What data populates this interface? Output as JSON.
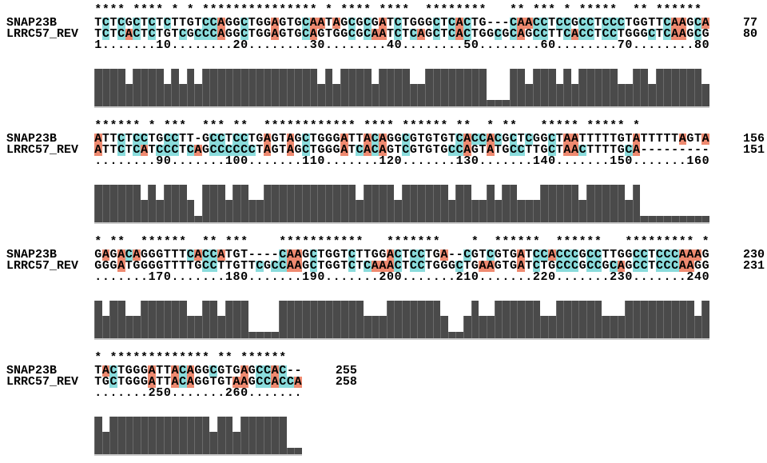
{
  "page": {
    "background": "#ffffff"
  },
  "alignment": {
    "labels": {
      "top": "SNAP23B",
      "bottom": "LRRC57_REV"
    },
    "colors": {
      "A": "#ef8a70",
      "C": "#8adcdc",
      "bar": "#4a4a4a",
      "baseline": "#c9c9c9",
      "text": "#000000"
    },
    "bar_levels": {
      "F": 1.0,
      "m": 0.6,
      "g": 0.17
    },
    "blocks": [
      {
        "stars": [
          "**** **** ",
          "* * ******",
          "********* ",
          "* **** ***",
          "*  *******",
          "*   ** ***",
          " * *****  ",
          "** ****** "
        ],
        "top_seq": [
          "TCTCGCTCTCTTGTCCAGGC",
          "TGGAGTGCAATAGCGCGATC",
          "TGGGCTCACTG---CAACCT",
          "CCGCCTCCCTGGTTCAAGCA"
        ],
        "bottom_seq": [
          "TCTCACTCTGTCGCCCAGGC",
          "TGGAGTGCAGTGGCGCAATC",
          "TCAGCTCACTGGCGCAGCCT",
          "TCACCTCCTGGGCTCAAGCG"
        ],
        "ruler": [
          "1.......10........20",
          "........30........40",
          "........50........60",
          "........70........80"
        ],
        "top_end": "77",
        "bottom_end": "80",
        "bars": [
          "FFFFmFFFFm",
          "FmFmFFFFFF",
          "FFFFFFFFFm",
          "FmFFFFmFFF",
          "FmmFFFFFFF",
          "FgggFFmFFF",
          "mFmFFFFFmm",
          "FFmFFFFFFm"
        ]
      },
      {
        "stars": [
          "****** * *",
          "**  *** **",
          "  ********",
          "**** **** ",
          "****** ** ",
          " * **   **",
          "*** ***** ",
          "*         "
        ],
        "top_seq": [
          "ATTCTCCTGCCTT-GCCTCC",
          "TGAGTAGCTGGGATTACAGG",
          "CGTGTGTCACCACGCTCGGC",
          "TAATTTTTGTATTTTTAGTA"
        ],
        "bottom_seq": [
          "ATTCTCATCCCTCAGCCCCC",
          "CTAGTAGCTGGGATCACAGT",
          "CGTGTGCCAGTATGCCTTGC",
          "TAACTTTTGCA---------"
        ],
        "ruler": [
          "........90.......100",
          ".......110.......120",
          ".......130.......140",
          ".......150.......160"
        ],
        "top_end": "156",
        "bottom_end": "151",
        "bars": [
          "FFFFFFmFmF",
          "FFmgFFFmFF",
          "mmFFFFFFFF",
          "FFFFmFFFFm",
          "FFFFFFmFFm",
          "mFmFFmmmFF",
          "FFFmFFFFFm",
          "Fggggggggg"
        ]
      },
      {
        "stars": [
          "* **  ****",
          "**  ** ***",
          "    ******",
          "*****   **",
          "*****    *",
          "  ******  ",
          "******   *",
          "******** *"
        ],
        "top_seq": [
          "GAGACAGGGTTTCACCATGT",
          "----CAAGCTGGTCTTGGAC",
          "TCCTGA--CGTCGTGATCCA",
          "CCCGCCTTGGCCTCCCAAAG"
        ],
        "bottom_seq": [
          "GGGATGGGGTTTTGCCTTGT",
          "TCGCCAAGCTGGTCTCAAAC",
          "TCCTGGGCTGAAGTGATCTG",
          "CCCGCCGCAGCCTCCCAAGG"
        ],
        "ruler": [
          ".......170.......180",
          ".......190.......200",
          ".......210.......220",
          ".......230.......240"
        ],
        "top_end": "230",
        "bottom_end": "231",
        "bars": [
          "FmFFmmFFFF",
          "FFmmFFmFFF",
          "ggggFFFFFF",
          "FFFFFmmmFF",
          "FFFFFmggmF",
          "mmFFFFFFmm",
          "FFFFFFmmmF",
          "FFFFFFFFmF"
        ]
      },
      {
        "stars": [
          "* ********",
          "***** ** *",
          "*****  "
        ],
        "top_seq": [
          "TACTGGGATTACAGGCGTGA",
          "GCCAC--"
        ],
        "bottom_seq": [
          "TGCTGGGATTACAGGTGTAA",
          "GCCACCA"
        ],
        "ruler": [
          ".......250.......260",
          "......."
        ],
        "top_end": "255",
        "bottom_end": "258",
        "bars": [
          "FmFFFFFFFF",
          "FFFFFmFFmF",
          "FFFFFgg"
        ]
      }
    ]
  }
}
